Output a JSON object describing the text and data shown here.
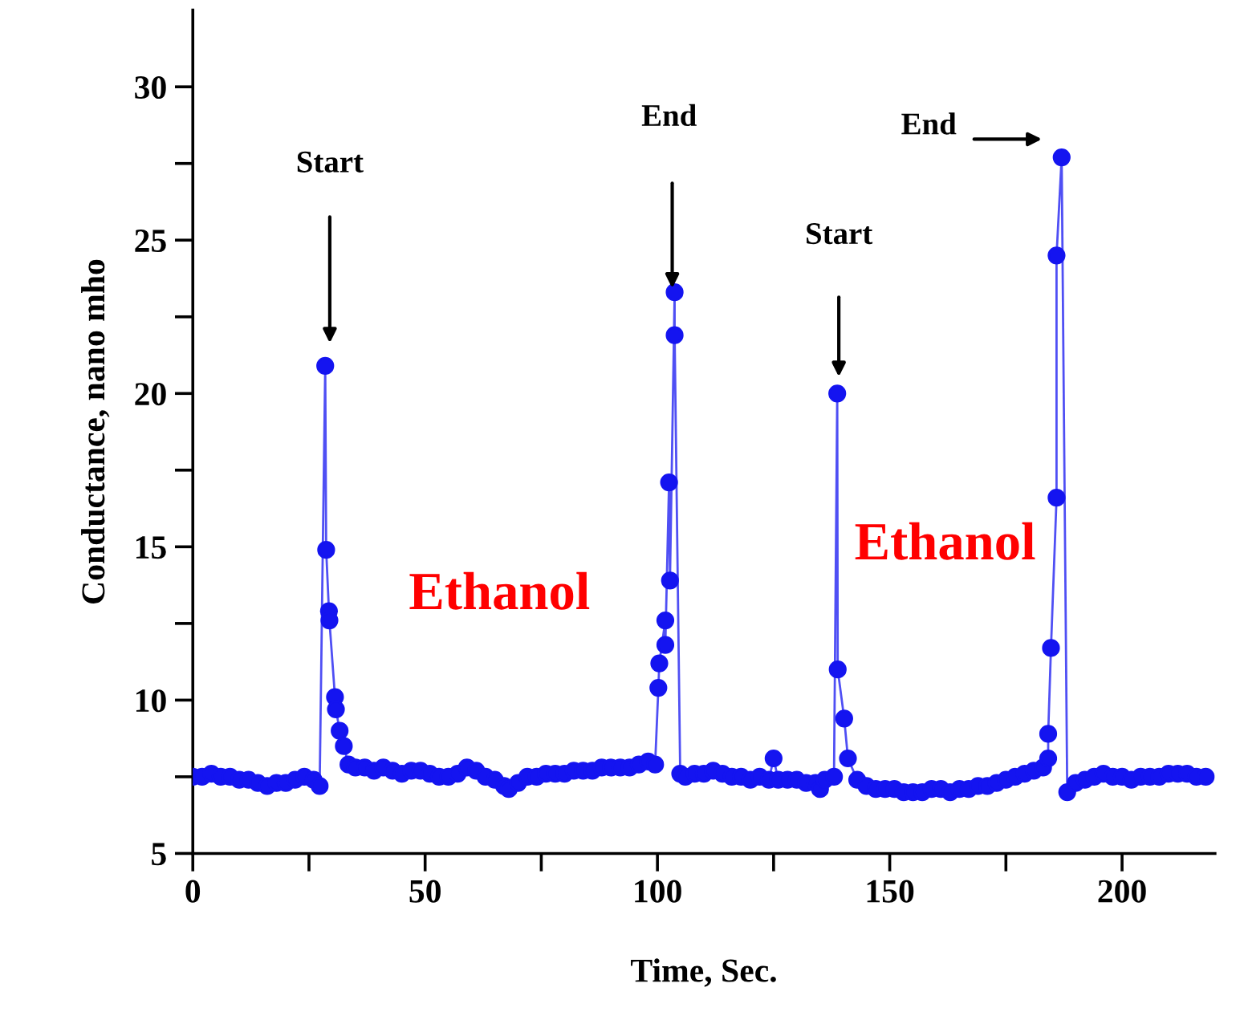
{
  "chart_data": {
    "type": "line",
    "xlabel": "Time, Sec.",
    "ylabel": "Conductance, nano mho",
    "x": [
      0,
      2,
      4,
      6,
      8,
      10,
      12,
      14,
      16,
      18,
      20,
      22,
      24,
      26,
      27.3,
      28.5,
      28.7,
      29.3,
      29.4,
      30.6,
      30.8,
      31.6,
      32.5,
      33.5,
      35,
      37,
      39,
      41,
      43,
      45,
      47,
      49,
      51,
      53,
      55,
      57,
      59,
      61,
      63,
      65,
      67,
      68,
      70,
      72,
      74,
      76,
      78,
      80,
      82,
      84,
      86,
      88,
      90,
      92,
      94,
      96,
      98,
      99.5,
      100.2,
      100.4,
      101.7,
      101.7,
      102.5,
      102.7,
      103.7,
      103.7,
      104.9,
      106,
      108,
      110,
      112,
      114,
      116,
      118,
      120,
      122,
      124,
      125,
      126,
      128,
      130,
      132,
      134,
      135,
      136,
      138,
      138.7,
      138.8,
      140.2,
      141,
      143,
      145,
      147,
      149,
      151,
      153,
      155,
      157,
      159,
      161,
      163,
      165,
      167,
      169,
      171,
      173,
      175,
      177,
      179,
      181,
      183,
      184.1,
      184.1,
      184.7,
      185.9,
      185.9,
      187,
      188.2,
      190,
      192,
      194,
      196,
      198,
      200,
      202,
      204,
      206,
      208,
      210,
      212,
      214,
      216,
      218
    ],
    "series": [
      {
        "color": "#1414f0",
        "values": [
          7.5,
          7.5,
          7.6,
          7.5,
          7.5,
          7.4,
          7.4,
          7.3,
          7.2,
          7.3,
          7.3,
          7.4,
          7.5,
          7.4,
          7.2,
          20.9,
          14.9,
          12.9,
          12.6,
          10.1,
          9.7,
          9.0,
          8.5,
          7.9,
          7.8,
          7.8,
          7.7,
          7.8,
          7.7,
          7.6,
          7.7,
          7.7,
          7.6,
          7.5,
          7.5,
          7.6,
          7.8,
          7.7,
          7.5,
          7.4,
          7.2,
          7.1,
          7.3,
          7.5,
          7.5,
          7.6,
          7.6,
          7.6,
          7.7,
          7.7,
          7.7,
          7.8,
          7.8,
          7.8,
          7.8,
          7.9,
          8.0,
          7.9,
          10.4,
          11.2,
          12.6,
          11.8,
          17.1,
          13.9,
          23.3,
          21.9,
          7.6,
          7.5,
          7.6,
          7.6,
          7.7,
          7.6,
          7.5,
          7.5,
          7.4,
          7.5,
          7.4,
          8.1,
          7.4,
          7.4,
          7.4,
          7.3,
          7.3,
          7.1,
          7.4,
          7.5,
          20.0,
          11.0,
          9.4,
          8.1,
          7.4,
          7.2,
          7.1,
          7.1,
          7.1,
          7.0,
          7.0,
          7.0,
          7.1,
          7.1,
          7.0,
          7.1,
          7.1,
          7.2,
          7.2,
          7.3,
          7.4,
          7.5,
          7.6,
          7.7,
          7.8,
          8.1,
          8.9,
          11.7,
          16.6,
          24.5,
          27.7,
          7.0,
          7.3,
          7.4,
          7.5,
          7.6,
          7.5,
          7.5,
          7.4,
          7.5,
          7.5,
          7.5,
          7.6,
          7.6,
          7.6,
          7.5,
          7.5
        ]
      }
    ],
    "xlim": [
      0,
      220
    ],
    "ylim": [
      5,
      32.5
    ],
    "xticks": [
      0,
      {
        "value": 25,
        "label": null
      },
      50,
      {
        "value": 75,
        "label": null
      },
      100,
      {
        "value": 125,
        "label": null
      },
      150,
      {
        "value": 175,
        "label": null
      },
      200
    ],
    "yticks": [
      5,
      {
        "value": 7.5,
        "label": null
      },
      10,
      {
        "value": 12.5,
        "label": null
      },
      15,
      {
        "value": 17.5,
        "label": null
      },
      20,
      {
        "value": 22.5,
        "label": null
      },
      25,
      {
        "value": 27.5,
        "label": null
      },
      30
    ],
    "marker": "circle",
    "line_style": "solid",
    "grid": false,
    "legend": false,
    "annotations": [
      "Start",
      "End",
      "Start",
      "End",
      "Ethanol",
      "Ethanol"
    ]
  }
}
